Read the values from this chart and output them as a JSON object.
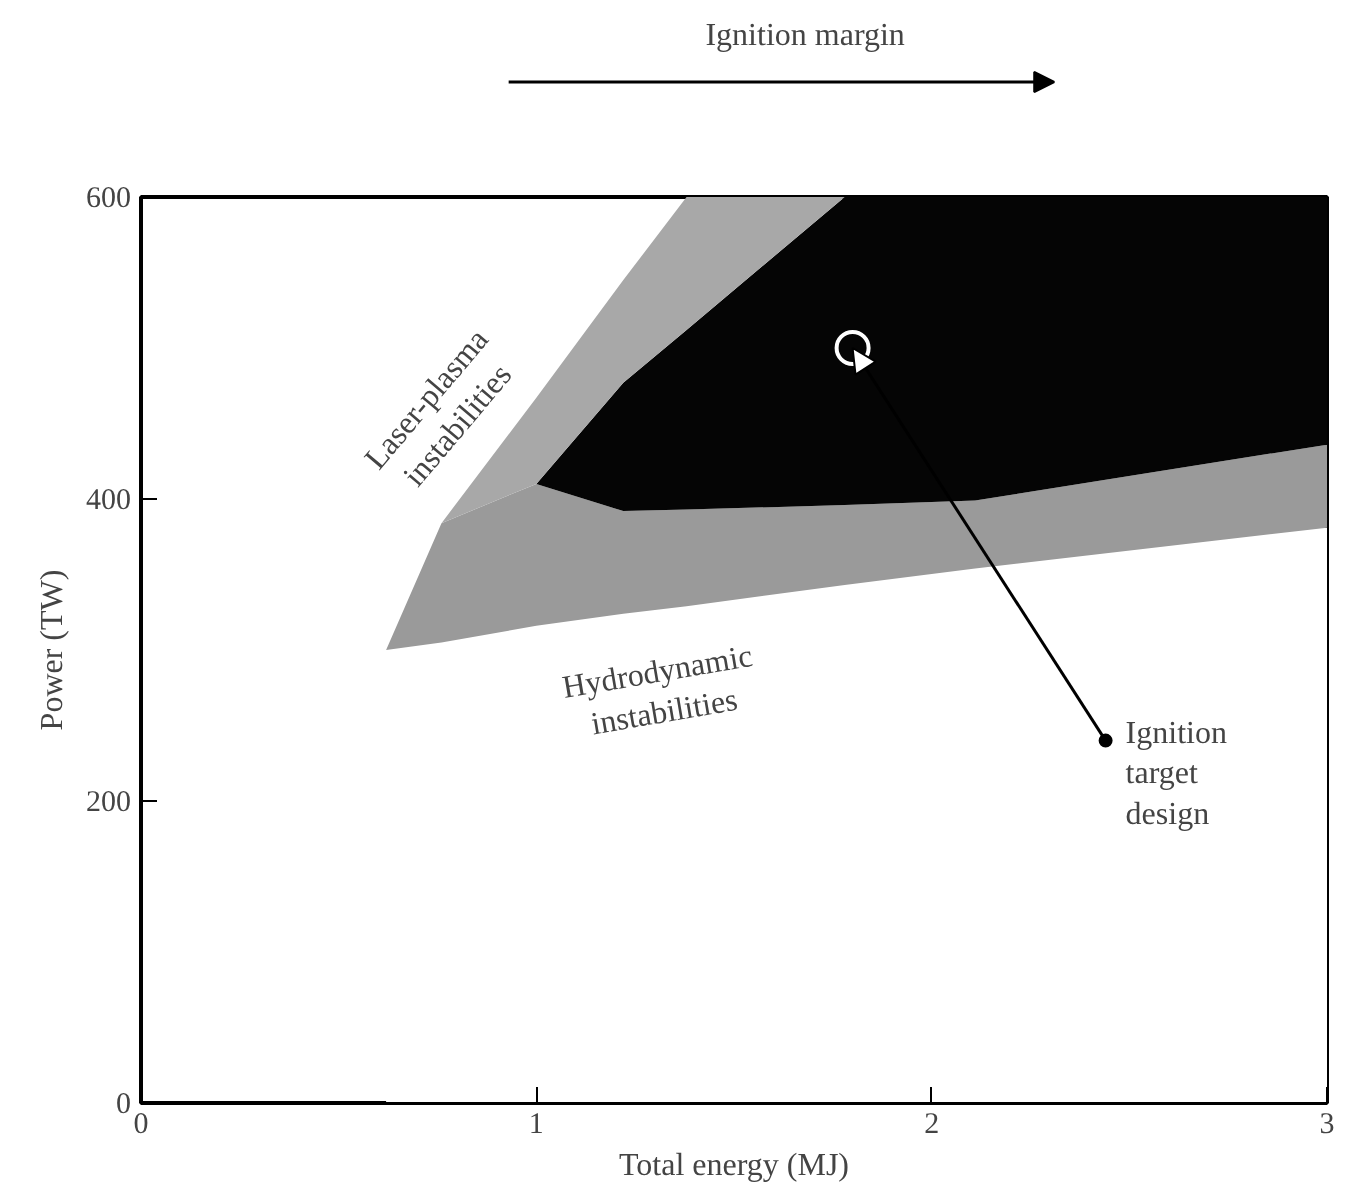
{
  "chart_data": {
    "type": "area",
    "stacked": true,
    "clabel": "Ignition margin",
    "xlabel": "Total energy (MJ)",
    "ylabel": "Power (TW)",
    "xlim": [
      0,
      3
    ],
    "ylim": [
      0,
      600
    ],
    "xticks": [
      0,
      1,
      2,
      3
    ],
    "yticks": [
      0,
      200,
      400,
      600
    ],
    "grid": false,
    "x": [
      0.62,
      0.76,
      1.0,
      1.22,
      1.38,
      1.78,
      2.11,
      3.0
    ],
    "series": [
      {
        "color": "#ffffff",
        "values": [
          300,
          305,
          316,
          324,
          329,
          343,
          354,
          381
        ]
      },
      {
        "color": "#9a9a9a",
        "values": [
          0,
          79,
          94,
          68,
          64,
          53,
          45,
          55
        ]
      },
      {
        "color": "#050505",
        "values": [
          null,
          null,
          0,
          85,
          119,
          204,
          201,
          164
        ]
      },
      {
        "color": "#a8a8a8",
        "values": [
          null,
          0,
          57,
          68,
          88,
          0,
          null,
          null
        ]
      },
      {
        "type": "scatter",
        "color": "#ffffff",
        "marker": "circle",
        "x": [
          1.8
        ],
        "values": [
          500
        ]
      }
    ],
    "annotations": [
      "Laser-plasma instabilities",
      "Hydrodynamic instabilities",
      {
        "text": "Ignition target design",
        "x": 2.44,
        "y": 240
      }
    ]
  }
}
